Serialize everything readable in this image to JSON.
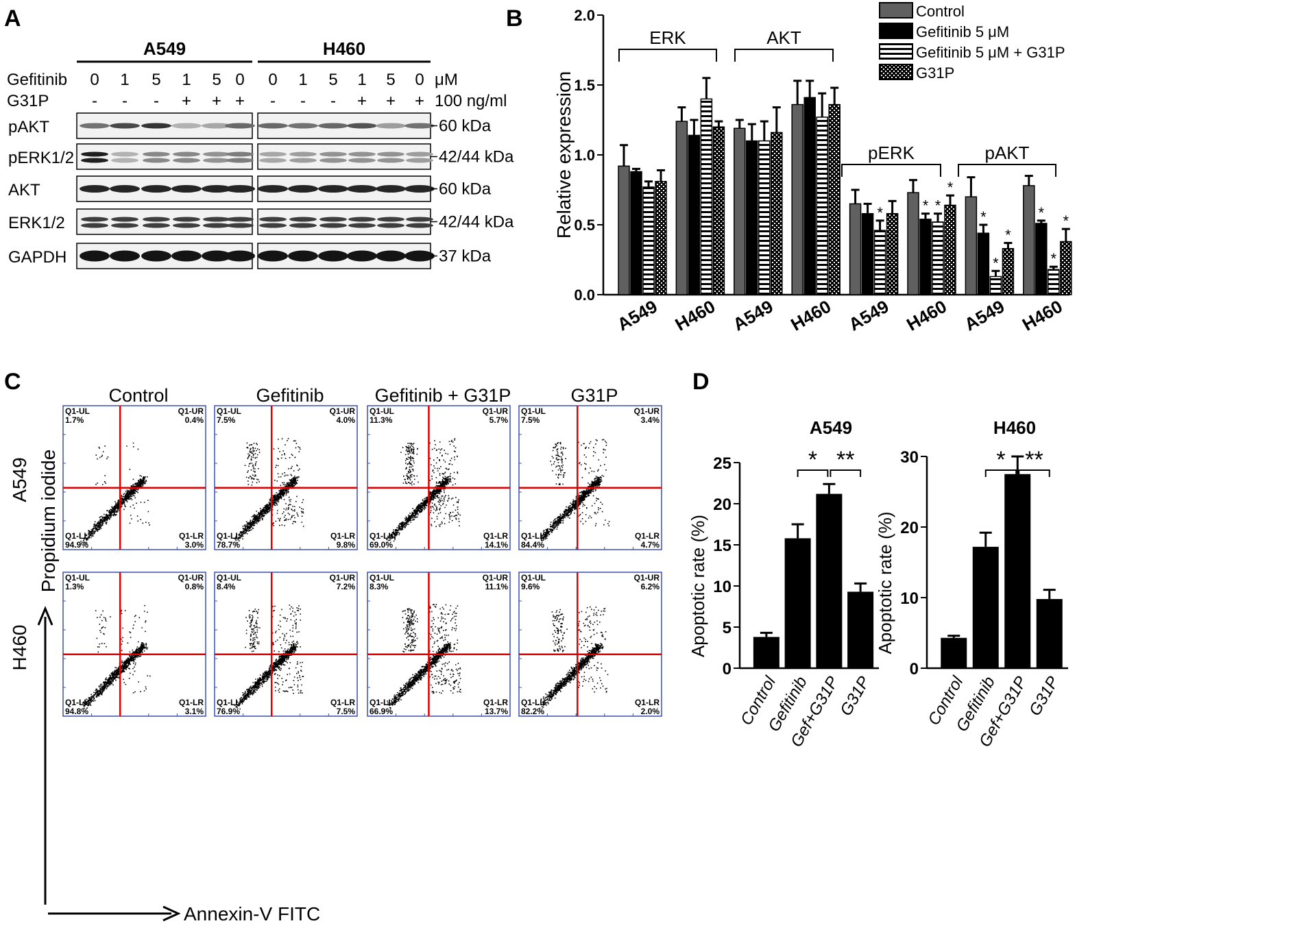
{
  "panel_labels": [
    "A",
    "B",
    "C",
    "D"
  ],
  "panelA": {
    "cell_lines": [
      "A549",
      "H460"
    ],
    "row_labels": [
      "Gefitinib",
      "G31P"
    ],
    "gefitinib_doses": [
      "0",
      "1",
      "5",
      "1",
      "5",
      "0"
    ],
    "g31p_marks": [
      "-",
      "-",
      "-",
      "+",
      "+",
      "+"
    ],
    "dose_units": [
      "μM",
      "100 ng/ml"
    ],
    "blots": [
      {
        "name": "pAKT",
        "size": "60 kDa"
      },
      {
        "name": "pERK1/2",
        "size": "42/44 kDa"
      },
      {
        "name": "AKT",
        "size": "60 kDa"
      },
      {
        "name": "ERK1/2",
        "size": "42/44 kDa"
      },
      {
        "name": "GAPDH",
        "size": "37 kDa"
      }
    ]
  },
  "chart_data": [
    {
      "id": "B",
      "type": "bar",
      "ylabel": "Relative expression",
      "ylim": [
        0,
        2.0
      ],
      "yticks": [
        "0.0",
        "0.5",
        "1.0",
        "1.5",
        "2.0"
      ],
      "categories": [
        "A549",
        "H460",
        "A549",
        "H460",
        "A549",
        "H460",
        "A549",
        "H460"
      ],
      "groups": [
        "ERK",
        "AKT",
        "pERK",
        "pAKT"
      ],
      "series": [
        {
          "name": "Control",
          "color": "#606060",
          "values": [
            0.92,
            1.24,
            1.19,
            1.36,
            0.65,
            0.73,
            0.7,
            0.78
          ],
          "errors": [
            0.15,
            0.1,
            0.06,
            0.17,
            0.1,
            0.09,
            0.14,
            0.07
          ]
        },
        {
          "name": "Gefitinib 5 μM",
          "color": "#000000",
          "values": [
            0.88,
            1.14,
            1.1,
            1.41,
            0.58,
            0.54,
            0.44,
            0.51
          ],
          "errors": [
            0.02,
            0.11,
            0.12,
            0.12,
            0.07,
            0.04,
            0.06,
            0.02
          ]
        },
        {
          "name": "Gefitinib 5 μM + G31P",
          "color": "#ffffff",
          "values": [
            0.77,
            1.4,
            1.1,
            1.27,
            0.46,
            0.52,
            0.13,
            0.18
          ],
          "errors": [
            0.04,
            0.15,
            0.14,
            0.17,
            0.07,
            0.06,
            0.04,
            0.02
          ]
        },
        {
          "name": "G31P",
          "color": "#888888",
          "values": [
            0.81,
            1.2,
            1.16,
            1.36,
            0.58,
            0.64,
            0.33,
            0.38
          ],
          "errors": [
            0.08,
            0.04,
            0.18,
            0.12,
            0.09,
            0.07,
            0.04,
            0.09
          ]
        }
      ],
      "significance": [
        {
          "category": 4,
          "series": 2,
          "label": "*"
        },
        {
          "category": 5,
          "series": 1,
          "label": "*"
        },
        {
          "category": 5,
          "series": 2,
          "label": "*"
        },
        {
          "category": 5,
          "series": 3,
          "label": "*"
        },
        {
          "category": 6,
          "series": 1,
          "label": "*"
        },
        {
          "category": 6,
          "series": 2,
          "label": "*"
        },
        {
          "category": 6,
          "series": 3,
          "label": "*"
        },
        {
          "category": 7,
          "series": 1,
          "label": "*"
        },
        {
          "category": 7,
          "series": 2,
          "label": "*"
        },
        {
          "category": 7,
          "series": 3,
          "label": "*"
        }
      ]
    },
    {
      "id": "C",
      "type": "scatter",
      "columns": [
        "Control",
        "Gefitinib",
        "Gefitinib + G31P",
        "G31P"
      ],
      "rows": [
        "A549",
        "H460"
      ],
      "ylabel": "Propidium iodide",
      "xlabel": "Annexin-V  FITC",
      "quadrant_names": [
        "Q1-UL",
        "Q1-UR",
        "Q1-LL",
        "Q1-LR"
      ],
      "quadrants": [
        [
          {
            "UL": "1.7%",
            "UR": "0.4%",
            "LL": "94.9%",
            "LR": "3.0%"
          },
          {
            "UL": "7.5%",
            "UR": "4.0%",
            "LL": "78.7%",
            "LR": "9.8%"
          },
          {
            "UL": "11.3%",
            "UR": "5.7%",
            "LL": "69.0%",
            "LR": "14.1%"
          },
          {
            "UL": "7.5%",
            "UR": "3.4%",
            "LL": "84.4%",
            "LR": "4.7%"
          }
        ],
        [
          {
            "UL": "1.3%",
            "UR": "0.8%",
            "LL": "94.8%",
            "LR": "3.1%"
          },
          {
            "UL": "8.4%",
            "UR": "7.2%",
            "LL": "76.9%",
            "LR": "7.5%"
          },
          {
            "UL": "8.3%",
            "UR": "11.1%",
            "LL": "66.9%",
            "LR": "13.7%"
          },
          {
            "UL": "9.6%",
            "UR": "6.2%",
            "LL": "82.2%",
            "LR": "2.0%"
          }
        ]
      ]
    },
    {
      "id": "D-A549",
      "type": "bar",
      "title": "A549",
      "ylabel": "Apoptotic rate (%)",
      "ylim": [
        0,
        25
      ],
      "yticks": [
        "0",
        "5",
        "10",
        "15",
        "20",
        "25"
      ],
      "categories": [
        "Control",
        "Gefitinib",
        "Gef+G31P",
        "G31P"
      ],
      "values": [
        3.8,
        15.8,
        21.2,
        9.3
      ],
      "errors": [
        0.5,
        1.7,
        1.2,
        1.0
      ],
      "brackets": [
        {
          "from": 1,
          "to": 2,
          "label": "*"
        },
        {
          "from": 2,
          "to": 3,
          "label": "**"
        }
      ]
    },
    {
      "id": "D-H460",
      "type": "bar",
      "title": "H460",
      "ylabel": "Apoptotic rate (%)",
      "ylim": [
        0,
        30
      ],
      "yticks": [
        "0",
        "10",
        "20",
        "30"
      ],
      "categories": [
        "Control",
        "Gefitinib",
        "Gef+G31P",
        "G31P"
      ],
      "values": [
        4.3,
        17.2,
        27.5,
        9.8
      ],
      "errors": [
        0.3,
        2.0,
        2.5,
        1.3
      ],
      "brackets": [
        {
          "from": 1,
          "to": 2,
          "label": "*"
        },
        {
          "from": 2,
          "to": 3,
          "label": "**"
        }
      ]
    }
  ]
}
